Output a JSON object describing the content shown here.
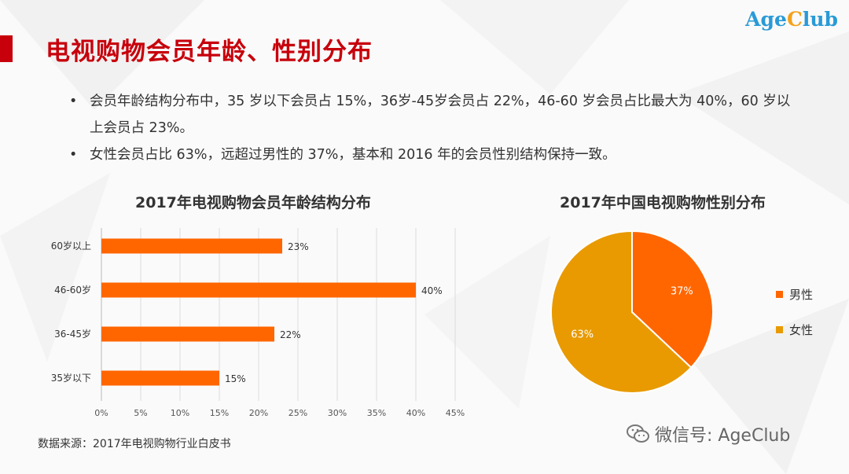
{
  "slide": {
    "title": "电视购物会员年龄、性别分布",
    "logo_part1": "Age",
    "logo_c": "C",
    "logo_part2": "lub",
    "bullets": [
      "会员年龄结构分布中，35 岁以下会员占 15%，36岁-45岁会员占 22%，46-60 岁会员占比最大为 40%，60 岁以上会员占 23%。",
      "女性会员占比 63%，远超过男性的 37%，基本和 2016 年的会员性别结构保持一致。"
    ],
    "source": "数据来源：2017年电视购物行业白皮书",
    "wechat": "微信号: AgeClub"
  },
  "colors": {
    "accent": "#c7000b",
    "male": "#ff6600",
    "female": "#e89a00",
    "bar": "#ff6600"
  },
  "chart_data": [
    {
      "type": "bar",
      "orientation": "horizontal",
      "title": "2017年电视购物会员年龄结构分布",
      "categories": [
        "60岁以上",
        "46-60岁",
        "36-45岁",
        "35岁以下"
      ],
      "values": [
        23,
        40,
        22,
        15
      ],
      "value_labels": [
        "23%",
        "40%",
        "22%",
        "15%"
      ],
      "x_ticks": [
        "0%",
        "5%",
        "10%",
        "15%",
        "20%",
        "25%",
        "30%",
        "35%",
        "40%",
        "45%"
      ],
      "xlim": [
        0,
        45
      ],
      "grid": true
    },
    {
      "type": "pie",
      "title": "2017年中国电视购物性别分布",
      "labels": [
        "男性",
        "女性"
      ],
      "values": [
        37,
        63
      ],
      "value_labels": [
        "37%",
        "63%"
      ],
      "legend": "right"
    }
  ]
}
